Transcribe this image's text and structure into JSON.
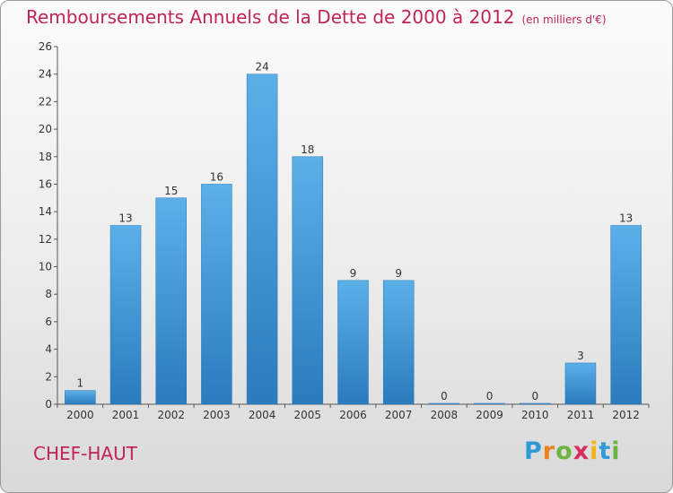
{
  "header": {
    "title": "Remboursements Annuels de la Dette de 2000 à 2012",
    "unit": "(en milliers d'€)"
  },
  "commune": "CHEF-HAUT",
  "logo": {
    "text": "Proxiti",
    "letters": [
      "P",
      "r",
      "o",
      "x",
      "i",
      "t",
      "i"
    ]
  },
  "colors": {
    "title": "#c0245a",
    "bar_top": "#5aaee6",
    "bar_bottom": "#2d7dbf"
  },
  "chart_data": {
    "type": "bar",
    "title": "Remboursements Annuels de la Dette de 2000 à 2012",
    "subtitle": "(en milliers d'€)",
    "xlabel": "",
    "ylabel": "",
    "categories": [
      "2000",
      "2001",
      "2002",
      "2003",
      "2004",
      "2005",
      "2006",
      "2007",
      "2008",
      "2009",
      "2010",
      "2011",
      "2012"
    ],
    "values": [
      1,
      13,
      15,
      16,
      24,
      18,
      9,
      9,
      0,
      0,
      0,
      3,
      13
    ],
    "ylim": [
      0,
      26
    ],
    "yticks": [
      0,
      2,
      4,
      6,
      8,
      10,
      12,
      14,
      16,
      18,
      20,
      22,
      24,
      26
    ],
    "grid": false,
    "legend": "none"
  }
}
